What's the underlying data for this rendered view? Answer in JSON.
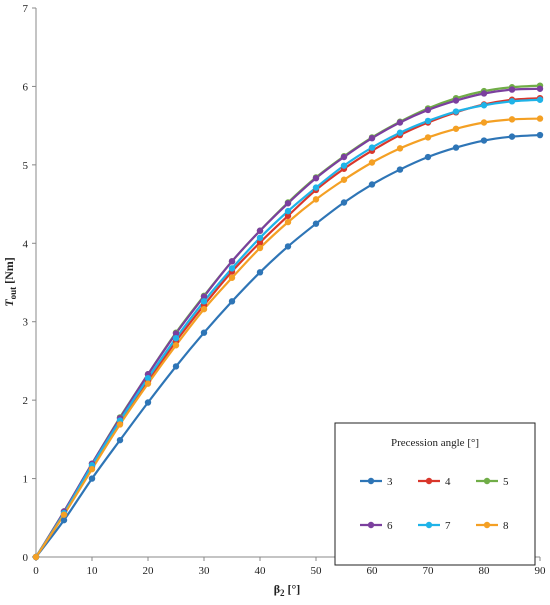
{
  "chart_data": {
    "type": "line",
    "title": "",
    "xlabel_main": "β",
    "xlabel_sub": "2",
    "xlabel_unit": " [°]",
    "ylabel_main": "T",
    "ylabel_sub": "out",
    "ylabel_unit": " [Nm]",
    "xlim": [
      0,
      90
    ],
    "ylim": [
      0,
      7
    ],
    "x_ticks": [
      "0",
      "10",
      "20",
      "30",
      "40",
      "50",
      "60",
      "70",
      "80",
      "90"
    ],
    "y_ticks": [
      "0",
      "1",
      "2",
      "3",
      "4",
      "5",
      "6",
      "7"
    ],
    "grid": false,
    "legend": {
      "title": "Precession angle [°]",
      "placement": "bottom-right"
    },
    "x": [
      0,
      5,
      10,
      15,
      20,
      25,
      30,
      35,
      40,
      45,
      50,
      55,
      60,
      65,
      70,
      75,
      80,
      85,
      90
    ],
    "series": [
      {
        "name": "3",
        "color": "#2e75b6",
        "values": [
          0,
          0.47,
          1.0,
          1.49,
          1.97,
          2.43,
          2.86,
          3.26,
          3.63,
          3.96,
          4.25,
          4.52,
          4.75,
          4.94,
          5.1,
          5.22,
          5.31,
          5.36,
          5.38
        ]
      },
      {
        "name": "4",
        "color": "#d9362b",
        "values": [
          0,
          0.55,
          1.15,
          1.71,
          2.24,
          2.75,
          3.21,
          3.64,
          4.01,
          4.35,
          4.68,
          4.95,
          5.18,
          5.38,
          5.54,
          5.67,
          5.77,
          5.83,
          5.85
        ]
      },
      {
        "name": "5",
        "color": "#70ad47",
        "values": [
          0,
          0.58,
          1.19,
          1.78,
          2.33,
          2.86,
          3.33,
          3.77,
          4.16,
          4.52,
          4.84,
          5.11,
          5.35,
          5.55,
          5.72,
          5.85,
          5.94,
          5.99,
          6.01
        ]
      },
      {
        "name": "6",
        "color": "#7b3f9e",
        "values": [
          0,
          0.58,
          1.19,
          1.77,
          2.33,
          2.85,
          3.32,
          3.77,
          4.16,
          4.51,
          4.83,
          5.1,
          5.34,
          5.54,
          5.7,
          5.82,
          5.91,
          5.96,
          5.97
        ]
      },
      {
        "name": "7",
        "color": "#1fb3e8",
        "values": [
          0,
          0.56,
          1.17,
          1.74,
          2.28,
          2.79,
          3.26,
          3.68,
          4.07,
          4.41,
          4.71,
          4.99,
          5.22,
          5.41,
          5.56,
          5.68,
          5.76,
          5.81,
          5.83
        ]
      },
      {
        "name": "8",
        "color": "#f4a024",
        "values": [
          0,
          0.54,
          1.12,
          1.69,
          2.21,
          2.7,
          3.16,
          3.56,
          3.94,
          4.27,
          4.56,
          4.81,
          5.03,
          5.21,
          5.35,
          5.46,
          5.54,
          5.58,
          5.59
        ]
      }
    ]
  }
}
